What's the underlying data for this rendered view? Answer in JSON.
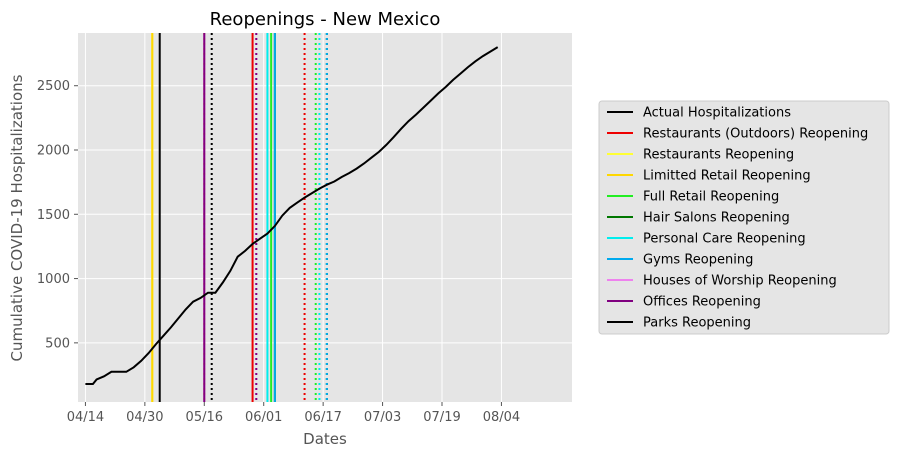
{
  "chart_data": {
    "type": "line",
    "title": "Reopenings - New Mexico",
    "xlabel": "Dates",
    "ylabel": "Cumulative COVID-19 Hospitalizations",
    "x_ticks": [
      "04/14",
      "04/30",
      "05/16",
      "06/01",
      "06/17",
      "07/03",
      "07/19",
      "08/04"
    ],
    "y_ticks": [
      500,
      1000,
      1500,
      2000,
      2500
    ],
    "xlim_days": [
      -2,
      131
    ],
    "ylim": [
      40,
      2910
    ],
    "grid": true,
    "legend_position": "right",
    "series": [
      {
        "name": "Actual Hospitalizations",
        "color": "#000000",
        "x_days": [
          0,
          2,
          3,
          5,
          7,
          9,
          11,
          13,
          15,
          17,
          19,
          21,
          23,
          25,
          27,
          29,
          31,
          33,
          35,
          37,
          39,
          41,
          43,
          45,
          47,
          49,
          51,
          53,
          55,
          57,
          59,
          61,
          63,
          65,
          67,
          69,
          71,
          73,
          75,
          77,
          79,
          81,
          83,
          85,
          87,
          89,
          91,
          93,
          95,
          97,
          99,
          101,
          103,
          105,
          107,
          109,
          111,
          113,
          115,
          117,
          119,
          121,
          123,
          125
        ],
        "values": [
          180,
          180,
          215,
          240,
          275,
          275,
          275,
          310,
          360,
          420,
          490,
          555,
          620,
          690,
          760,
          820,
          850,
          890,
          890,
          970,
          1060,
          1170,
          1215,
          1270,
          1310,
          1350,
          1410,
          1490,
          1550,
          1590,
          1630,
          1665,
          1700,
          1730,
          1755,
          1790,
          1820,
          1855,
          1895,
          1940,
          1985,
          2040,
          2100,
          2165,
          2225,
          2275,
          2330,
          2385,
          2440,
          2490,
          2545,
          2595,
          2645,
          2690,
          2730,
          2765,
          2800,
          2800,
          2800,
          2800,
          2800,
          2800,
          2800,
          2800
        ]
      }
    ],
    "reopenings": [
      {
        "name": "Restaurants (Outdoors) Reopening",
        "color": "#ee0000",
        "day": 45,
        "dotted_day": 59
      },
      {
        "name": "Restaurants Reopening",
        "color": "#ffff33",
        "day": 18,
        "dotted_day": 32
      },
      {
        "name": "Limitted Retail Reopening",
        "color": "#ffd700",
        "day": 18,
        "dotted_day": 32
      },
      {
        "name": "Full Retail Reopening",
        "color": "#22ee22",
        "day": 50,
        "dotted_day": 62
      },
      {
        "name": "Hair Salons Reopening",
        "color": "#007700",
        "day": 51,
        "dotted_day": 65
      },
      {
        "name": "Personal Care Reopening",
        "color": "#00eeee",
        "day": 49,
        "dotted_day": 63
      },
      {
        "name": "Gyms Reopening",
        "color": "#00aaee",
        "day": 51,
        "dotted_day": 65
      },
      {
        "name": "Houses of Worship Reopening",
        "color": "#ee82ee",
        "day": 32,
        "dotted_day": 46
      },
      {
        "name": "Offices Reopening",
        "color": "#800080",
        "day": 32,
        "dotted_day": 46
      },
      {
        "name": "Parks Reopening",
        "color": "#000000",
        "day": 20,
        "dotted_day": 34
      }
    ]
  }
}
